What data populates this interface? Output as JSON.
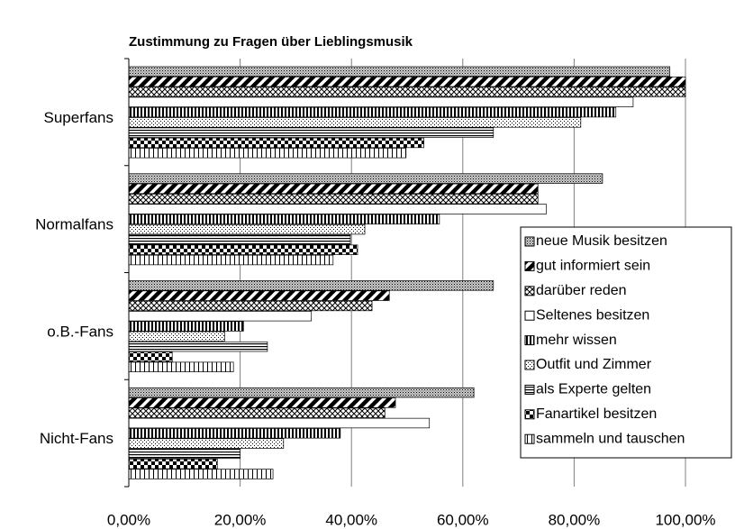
{
  "chart_data": {
    "type": "hbar",
    "title": "Zustimmung zu Fragen über Lieblingsmusik",
    "categories": [
      "Superfans",
      "Normalfans",
      "o.B.-Fans",
      "Nicht-Fans"
    ],
    "series": [
      {
        "name": "neue Musik besitzen",
        "color": "#000000",
        "pattern": "gray-dots",
        "values": [
          97.2,
          85.1,
          65.5,
          62
        ]
      },
      {
        "name": "gut informiert sein",
        "color": "#000000",
        "pattern": "diagonal-thick",
        "values": [
          100,
          73.5,
          46.8,
          47.9
        ]
      },
      {
        "name": "darüber reden",
        "color": "#000000",
        "pattern": "crosshatch",
        "values": [
          100,
          73.5,
          43.7,
          46
        ]
      },
      {
        "name": "Seltenes besitzen",
        "color": "#000000",
        "pattern": "white",
        "values": [
          90.6,
          75,
          32.8,
          54
        ]
      },
      {
        "name": "mehr wissen",
        "color": "#000000",
        "pattern": "vertical-thick",
        "values": [
          87.5,
          55.8,
          20.6,
          38
        ]
      },
      {
        "name": "Outfit und Zimmer",
        "color": "#000000",
        "pattern": "sparse-dots",
        "values": [
          81.2,
          42.4,
          17.2,
          27.8
        ]
      },
      {
        "name": "als Experte gelten",
        "color": "#000000",
        "pattern": "horizontal",
        "values": [
          65.5,
          39.8,
          24.9,
          20
        ]
      },
      {
        "name": "Fanartikel besitzen",
        "color": "#000000",
        "pattern": "checker",
        "values": [
          53,
          41.1,
          7.8,
          15.9
        ]
      },
      {
        "name": "sammeln und tauschen",
        "color": "#000000",
        "pattern": "vertical-thin",
        "values": [
          49.8,
          36.7,
          18.8,
          25.9
        ]
      }
    ],
    "xlim": [
      0,
      100
    ],
    "xticks": [
      {
        "value": 0,
        "label": "0,00%"
      },
      {
        "value": 20,
        "label": "20,00%"
      },
      {
        "value": 40,
        "label": "40,00%"
      },
      {
        "value": 60,
        "label": "60,00%"
      },
      {
        "value": 80,
        "label": "80,00%"
      },
      {
        "value": 100,
        "label": "100,00%"
      }
    ],
    "grid": true,
    "legend": "right"
  }
}
